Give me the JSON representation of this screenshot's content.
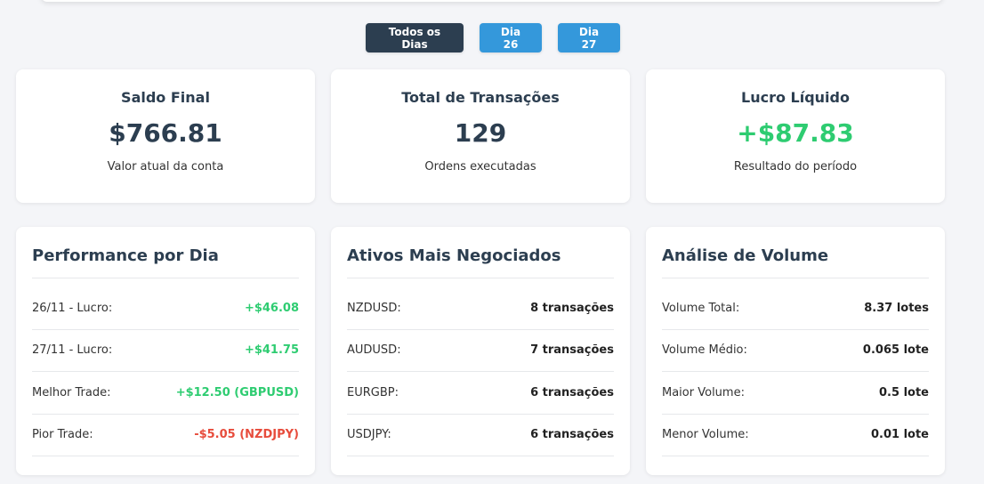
{
  "filters": {
    "all_days": "Todos os Dias",
    "day26": "Dia 26",
    "day27": "Dia 27"
  },
  "summary": {
    "balance": {
      "title": "Saldo Final",
      "value": "$766.81",
      "subtitle": "Valor atual da conta"
    },
    "transactions": {
      "title": "Total de Transações",
      "value": "129",
      "subtitle": "Ordens executadas"
    },
    "profit": {
      "title": "Lucro Líquido",
      "value": "+$87.83",
      "subtitle": "Resultado do período"
    }
  },
  "performance": {
    "title": "Performance por Dia",
    "rows": [
      {
        "label": "26/11 - Lucro:",
        "value": "+$46.08"
      },
      {
        "label": "27/11 - Lucro:",
        "value": "+$41.75"
      },
      {
        "label": "Melhor Trade:",
        "value": "+$12.50 (GBPUSD)"
      },
      {
        "label": "Pior Trade:",
        "value": "-$5.05 (NZDJPY)"
      }
    ]
  },
  "assets": {
    "title": "Ativos Mais Negociados",
    "rows": [
      {
        "label": "NZDUSD:",
        "value": "8 transações"
      },
      {
        "label": "AUDUSD:",
        "value": "7 transações"
      },
      {
        "label": "EURGBP:",
        "value": "6 transações"
      },
      {
        "label": "USDJPY:",
        "value": "6 transações"
      }
    ]
  },
  "volume": {
    "title": "Análise de Volume",
    "rows": [
      {
        "label": "Volume Total:",
        "value": "8.37 lotes"
      },
      {
        "label": "Volume Médio:",
        "value": "0.065 lote"
      },
      {
        "label": "Maior Volume:",
        "value": "0.5 lote"
      },
      {
        "label": "Menor Volume:",
        "value": "0.01 lote"
      }
    ]
  },
  "colors": {
    "positive": "#2ecc71",
    "negative": "#e74c3c",
    "primary": "#3498db",
    "active": "#2c3e50"
  }
}
